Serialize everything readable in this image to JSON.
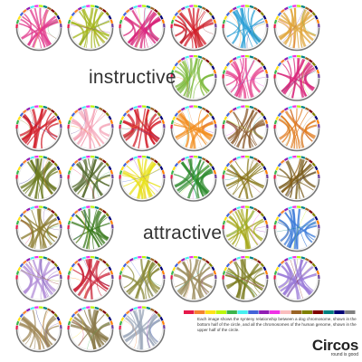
{
  "poster": {
    "word_top": "instructive",
    "word_bottom": "attractive",
    "caption": "Each image shows the synteny relationship between a dog chromosome, shown in the bottom half of the circle, and all the chromosomes of the human genome, shown in the upper half of the circle.",
    "logo_name": "Circos",
    "logo_tagline": "round is good"
  },
  "palette": {
    "ring": [
      "#e6194b",
      "#3cb44b",
      "#ffe119",
      "#4363d8",
      "#f58231",
      "#911eb4",
      "#46f0f0",
      "#f032e6",
      "#bcf60c",
      "#008080",
      "#9a6324",
      "#800000",
      "#808000",
      "#000075",
      "#ff7f00",
      "#6a3d9a"
    ],
    "strip": [
      "#e6194b",
      "#f58231",
      "#ffe119",
      "#bcf60c",
      "#3cb44b",
      "#46f0f0",
      "#4363d8",
      "#911eb4",
      "#f032e6",
      "#fabebe",
      "#9a6324",
      "#808000",
      "#800000",
      "#008080",
      "#000075",
      "#808080"
    ]
  },
  "panels": [
    {
      "row": 0,
      "col": 0,
      "color": "#e03a8c"
    },
    {
      "row": 0,
      "col": 1,
      "color": "#a3b51a"
    },
    {
      "row": 0,
      "col": 2,
      "color": "#d8257a"
    },
    {
      "row": 0,
      "col": 3,
      "color": "#d11f2b"
    },
    {
      "row": 0,
      "col": 4,
      "color": "#2a9fd6"
    },
    {
      "row": 0,
      "col": 5,
      "color": "#e0a63b"
    },
    {
      "row": 1,
      "col": 3,
      "color": "#7ab83a"
    },
    {
      "row": 1,
      "col": 4,
      "color": "#e63b8a"
    },
    {
      "row": 1,
      "col": 5,
      "color": "#d8257a"
    },
    {
      "row": 2,
      "col": 0,
      "color": "#d11f2b"
    },
    {
      "row": 2,
      "col": 1,
      "color": "#f4a6b8"
    },
    {
      "row": 2,
      "col": 2,
      "color": "#d11f2b"
    },
    {
      "row": 2,
      "col": 3,
      "color": "#f28c1c"
    },
    {
      "row": 2,
      "col": 4,
      "color": "#8a5a2b"
    },
    {
      "row": 2,
      "col": 5,
      "color": "#e07a1c"
    },
    {
      "row": 3,
      "col": 0,
      "color": "#6b7a1f"
    },
    {
      "row": 3,
      "col": 1,
      "color": "#556b2f"
    },
    {
      "row": 3,
      "col": 2,
      "color": "#e8e21c"
    },
    {
      "row": 3,
      "col": 3,
      "color": "#2e8b2e"
    },
    {
      "row": 3,
      "col": 4,
      "color": "#8a7a1c"
    },
    {
      "row": 3,
      "col": 5,
      "color": "#7a5c1c"
    },
    {
      "row": 4,
      "col": 0,
      "color": "#8a7a2b"
    },
    {
      "row": 4,
      "col": 1,
      "color": "#3a7a1c"
    },
    {
      "row": 4,
      "col": 4,
      "color": "#a6a81c"
    },
    {
      "row": 4,
      "col": 5,
      "color": "#3a7ad8"
    },
    {
      "row": 5,
      "col": 0,
      "color": "#b38fd8"
    },
    {
      "row": 5,
      "col": 1,
      "color": "#c9263a"
    },
    {
      "row": 5,
      "col": 2,
      "color": "#8a8a3a"
    },
    {
      "row": 5,
      "col": 3,
      "color": "#9a8a5a"
    },
    {
      "row": 5,
      "col": 4,
      "color": "#7a7a1c"
    },
    {
      "row": 5,
      "col": 5,
      "color": "#9a7ad8"
    },
    {
      "row": 6,
      "col": 0,
      "color": "#a08a5a"
    },
    {
      "row": 6,
      "col": 1,
      "color": "#8a7a4a"
    },
    {
      "row": 6,
      "col": 2,
      "color": "#9aa6b8"
    }
  ]
}
